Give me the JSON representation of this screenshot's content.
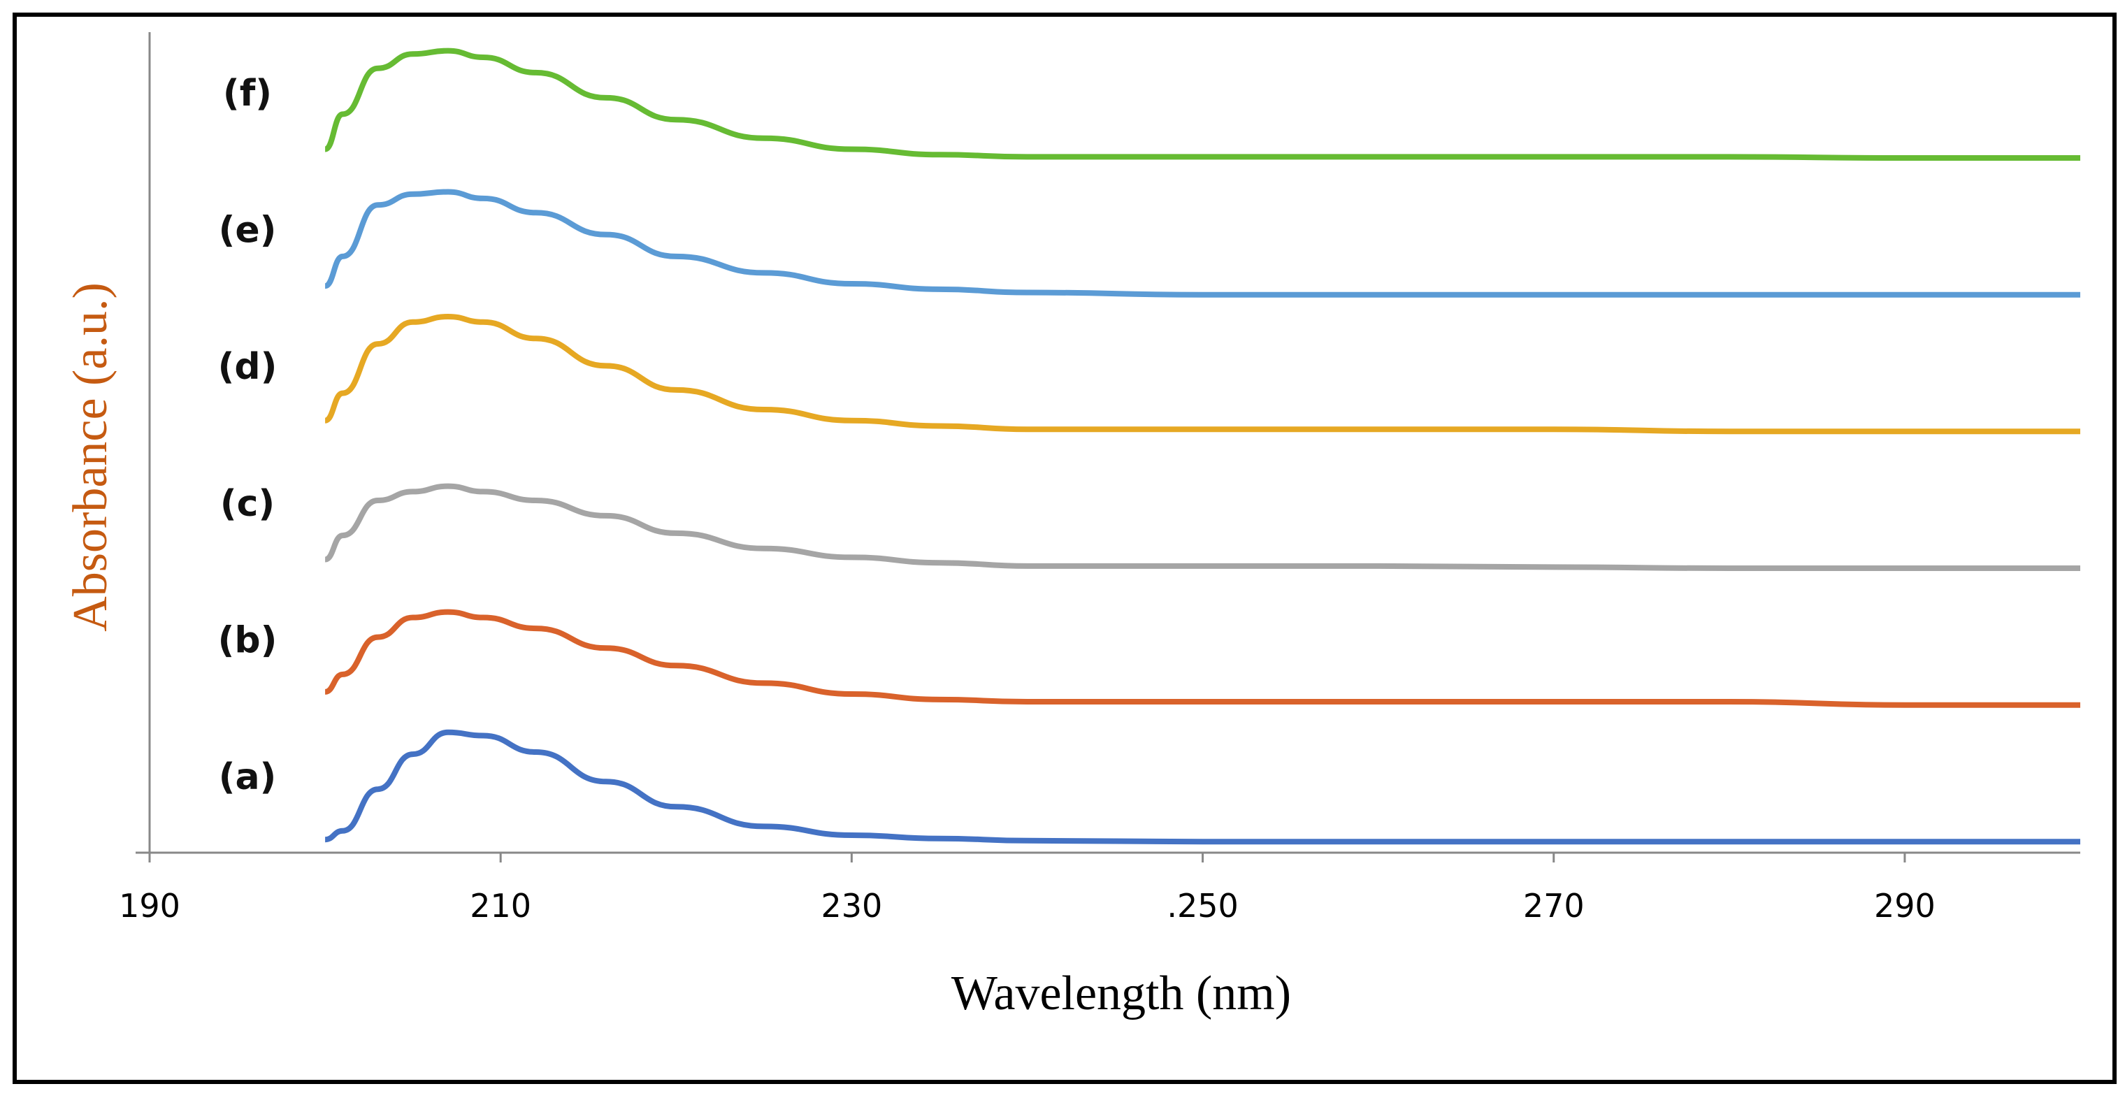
{
  "chart_data": {
    "type": "line",
    "title": "",
    "xlabel": "Wavelength (nm)",
    "ylabel": "Absorbance (a.u.)",
    "xlim": [
      190,
      300
    ],
    "x_ticks": [
      "190",
      "210",
      "230",
      ".250",
      "270",
      "290"
    ],
    "x_tick_values": [
      190,
      210,
      230,
      250,
      270,
      290
    ],
    "x": [
      200,
      201,
      203,
      205,
      207,
      209,
      212,
      216,
      220,
      225,
      230,
      235,
      240,
      250,
      260,
      270,
      280,
      290,
      300
    ],
    "series": [
      {
        "name": "(a)",
        "color": "#4472C4",
        "offset": 0.0,
        "values": [
          0.02,
          0.1,
          0.48,
          0.8,
          1.0,
          0.97,
          0.82,
          0.55,
          0.32,
          0.14,
          0.06,
          0.03,
          0.01,
          0.0,
          0.0,
          0.0,
          0.0,
          0.0,
          0.0
        ]
      },
      {
        "name": "(b)",
        "color": "#D9622B",
        "offset": 1.25,
        "values": [
          0.12,
          0.28,
          0.62,
          0.8,
          0.85,
          0.8,
          0.7,
          0.52,
          0.36,
          0.2,
          0.1,
          0.05,
          0.03,
          0.03,
          0.03,
          0.03,
          0.03,
          0.0,
          0.0
        ]
      },
      {
        "name": "(c)",
        "color": "#A5A5A5",
        "offset": 2.5,
        "values": [
          0.08,
          0.3,
          0.62,
          0.7,
          0.75,
          0.7,
          0.62,
          0.48,
          0.32,
          0.18,
          0.1,
          0.05,
          0.02,
          0.02,
          0.02,
          0.01,
          0.0,
          0.0,
          0.0
        ]
      },
      {
        "name": "(d)",
        "color": "#E6A823",
        "offset": 3.75,
        "values": [
          0.1,
          0.35,
          0.8,
          1.0,
          1.05,
          1.0,
          0.85,
          0.6,
          0.38,
          0.2,
          0.1,
          0.05,
          0.02,
          0.02,
          0.02,
          0.02,
          0.0,
          0.0,
          0.0
        ]
      },
      {
        "name": "(e)",
        "color": "#5B9BD5",
        "offset": 5.0,
        "values": [
          0.08,
          0.35,
          0.82,
          0.92,
          0.94,
          0.88,
          0.75,
          0.55,
          0.35,
          0.2,
          0.1,
          0.05,
          0.02,
          0.0,
          0.0,
          0.0,
          0.0,
          0.0,
          0.0
        ]
      },
      {
        "name": "(f)",
        "color": "#66BB33",
        "offset": 6.25,
        "values": [
          0.08,
          0.4,
          0.82,
          0.95,
          0.98,
          0.92,
          0.78,
          0.55,
          0.35,
          0.18,
          0.08,
          0.03,
          0.01,
          0.01,
          0.01,
          0.01,
          0.01,
          0.0,
          0.0
        ]
      }
    ],
    "ylim": [
      -0.1,
      7.4
    ],
    "grid": false,
    "legend": "inline-left",
    "axis_title_color": "#C55A11"
  }
}
